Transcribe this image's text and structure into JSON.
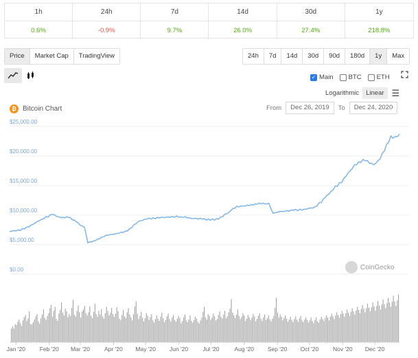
{
  "changes": {
    "headers": [
      "1h",
      "24h",
      "7d",
      "14d",
      "30d",
      "1y"
    ],
    "values": [
      "0.6%",
      "-0.9%",
      "9.7%",
      "26.0%",
      "27.4%",
      "218.8%"
    ],
    "directions": [
      "pos",
      "neg",
      "pos",
      "pos",
      "pos",
      "pos"
    ]
  },
  "type_tabs": [
    "Price",
    "Market Cap",
    "TradingView"
  ],
  "range_tabs": [
    "24h",
    "7d",
    "14d",
    "30d",
    "90d",
    "180d",
    "1y",
    "Max"
  ],
  "active_range": "1y",
  "chart_types": [
    {
      "icon": "line-chart-icon",
      "glyph": "↗"
    },
    {
      "icon": "candlestick-icon",
      "glyph": "▮▮"
    }
  ],
  "compare": [
    {
      "label": "Main",
      "checked": true
    },
    {
      "label": "BTC",
      "checked": false
    },
    {
      "label": "ETH",
      "checked": false
    }
  ],
  "scale": {
    "options": [
      "Logarithmic",
      "Linear"
    ],
    "active": "Linear"
  },
  "title": "Bitcoin Chart",
  "date_range": {
    "from_label": "From",
    "from": "Dec 26, 2019",
    "to_label": "To",
    "to": "Dec 24, 2020"
  },
  "watermark": "CoinGecko",
  "colors": {
    "line": "#7cb5ec",
    "volume": "#9a9a9a",
    "positive": "#4eaf0a",
    "negative": "#e15241",
    "bitcoin": "#f7931a"
  },
  "chart_data": {
    "type": "line",
    "ylabels": [
      "$25,000.00",
      "$20,000.00",
      "$15,000.00",
      "$10,000.00",
      "$5,000.00",
      "$0.00"
    ],
    "yticks": [
      25000,
      20000,
      15000,
      10000,
      5000,
      0
    ],
    "ylim": [
      0,
      25000
    ],
    "xlabels": [
      "Jan '20",
      "Feb '20",
      "Mar '20",
      "Apr '20",
      "May '20",
      "Jun '20",
      "Jul '20",
      "Aug '20",
      "Sep '20",
      "Oct '20",
      "Nov '20",
      "Dec '20"
    ],
    "xlim": [
      0,
      364
    ],
    "xtick_days": [
      6,
      37,
      66,
      97,
      127,
      158,
      188,
      219,
      250,
      280,
      311,
      341
    ],
    "price_points": [
      [
        0,
        7200
      ],
      [
        10,
        7400
      ],
      [
        18,
        8000
      ],
      [
        30,
        9300
      ],
      [
        40,
        10100
      ],
      [
        46,
        9700
      ],
      [
        55,
        9600
      ],
      [
        62,
        8900
      ],
      [
        70,
        7900
      ],
      [
        73,
        5300
      ],
      [
        78,
        5600
      ],
      [
        90,
        6600
      ],
      [
        100,
        6900
      ],
      [
        110,
        7300
      ],
      [
        120,
        8900
      ],
      [
        128,
        9300
      ],
      [
        140,
        9500
      ],
      [
        150,
        9600
      ],
      [
        160,
        9700
      ],
      [
        170,
        9400
      ],
      [
        180,
        9300
      ],
      [
        195,
        9300
      ],
      [
        205,
        10500
      ],
      [
        212,
        11500
      ],
      [
        222,
        11700
      ],
      [
        235,
        11900
      ],
      [
        242,
        12000
      ],
      [
        246,
        10300
      ],
      [
        255,
        10600
      ],
      [
        265,
        10800
      ],
      [
        275,
        11000
      ],
      [
        285,
        11400
      ],
      [
        295,
        13000
      ],
      [
        300,
        14000
      ],
      [
        310,
        15500
      ],
      [
        318,
        17500
      ],
      [
        326,
        19000
      ],
      [
        332,
        19200
      ],
      [
        340,
        18500
      ],
      [
        346,
        19500
      ],
      [
        352,
        22000
      ],
      [
        356,
        23400
      ],
      [
        360,
        23300
      ],
      [
        364,
        23700
      ]
    ],
    "volume": [
      3,
      3.5,
      3,
      4,
      3.8,
      4.5,
      5,
      4.2,
      3.6,
      4.8,
      5.5,
      6,
      4.7,
      5.2,
      6.8,
      4,
      3.9,
      4.4,
      5,
      5.7,
      6.2,
      4.6,
      4.1,
      5.3,
      6.1,
      7.2,
      5.4,
      4.9,
      5.8,
      6.4,
      7.5,
      8.2,
      5.6,
      6.9,
      7.8,
      5.1,
      4.7,
      6.3,
      7.1,
      8.8,
      6.5,
      5.9,
      7.4,
      6.8,
      5.5,
      6.2,
      5.8,
      7.6,
      9.3,
      6.1,
      5.7,
      6.9,
      8.1,
      6.6,
      5.4,
      6.8,
      7.2,
      8,
      6.4,
      5.9,
      6.6,
      7.9,
      5.8,
      5.3,
      6.7,
      8.5,
      6.2,
      5.6,
      6.9,
      6.1,
      7.3,
      5.7,
      5.2,
      6.4,
      7.8,
      6.9,
      5.9,
      6.5,
      7.6,
      6.2,
      5.6,
      6.3,
      7.7,
      6.8,
      5.2,
      4.9,
      6,
      7.1,
      5.7,
      5.3,
      6.6,
      7.5,
      6.1,
      5.5,
      4.8,
      6.2,
      7.9,
      9,
      6.3,
      5.1,
      5.8,
      6.7,
      5.4,
      4.6,
      5.3,
      6.4,
      5.8,
      4.9,
      5.5,
      6.2,
      4.8,
      4.3,
      5.1,
      5.9,
      5.2,
      4.7,
      5.6,
      6.5,
      5.3,
      4.4,
      4.9,
      5.7,
      6.3,
      5.1,
      4.6,
      5.4,
      6,
      4.9,
      4.5,
      5.2,
      5.8,
      5.3,
      4.2,
      4.7,
      5.5,
      6.1,
      4.8,
      4.4,
      5,
      5.9,
      4.7,
      4.3,
      4.9,
      5.6,
      5.2,
      4.5,
      4.1,
      4.8,
      5.4,
      6.7,
      7.8,
      5.5,
      5,
      6.2,
      5.8,
      4.9,
      5.4,
      6.3,
      5.7,
      4.8,
      5.1,
      6,
      6.8,
      5.6,
      5.2,
      6.1,
      6.9,
      5.3,
      5.7,
      6.6,
      7.4,
      9.5,
      6.5,
      5.9,
      5.3,
      6.1,
      7.2,
      5.8,
      5.1,
      5.6,
      6.4,
      5.9,
      4.7,
      5.2,
      6,
      5.5,
      4.9,
      5.4,
      6.2,
      5.7,
      4.6,
      5.1,
      5.8,
      6.4,
      5.2,
      4.7,
      5.5,
      6.1,
      4.9,
      5.3,
      5.9,
      5,
      4.6,
      5.2,
      5.8,
      7.6,
      9.8,
      6.5,
      5.4,
      6.1,
      5.6,
      4.8,
      5.3,
      5.9,
      5.2,
      4.5,
      5,
      5.6,
      4.9,
      4.4,
      5.1,
      5.7,
      5,
      4.5,
      5.3,
      5.8,
      4.8,
      4.4,
      5,
      5.5,
      4.9,
      4.3,
      4.8,
      5.4,
      4.7,
      4.2,
      4.9,
      5.5,
      4.6,
      4.3,
      5,
      5.6,
      5.1,
      4.7,
      5.3,
      5.9,
      5.4,
      4.8,
      5.6,
      6.3,
      5.7,
      5.1,
      5.9,
      6.6,
      6,
      5.4,
      6.2,
      6.9,
      6.3,
      5.6,
      6.4,
      7.2,
      6.5,
      5.8,
      6.7,
      7.5,
      6.8,
      6.1,
      7,
      7.8,
      7.1,
      6.4,
      7.3,
      8.2,
      7.4,
      6.6,
      7.5,
      8.5,
      7.6,
      6.8,
      7.7,
      8.8,
      7.9,
      7,
      8,
      9.1,
      8.1,
      7.2,
      8.3,
      9.4,
      8.4,
      7.5,
      8.6,
      9.8,
      8.7,
      7.8,
      8.9,
      10.2,
      9,
      8,
      9.2,
      10.5
    ]
  }
}
